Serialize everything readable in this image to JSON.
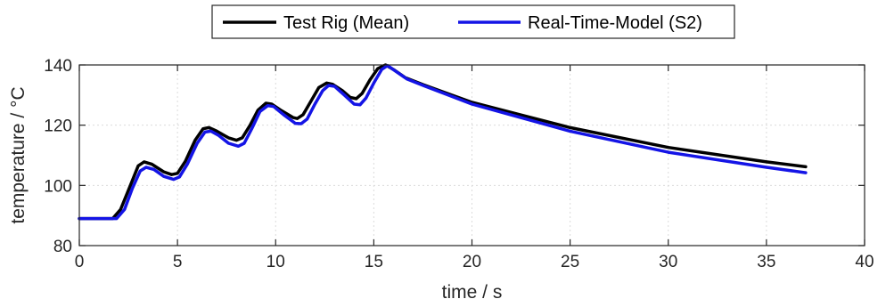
{
  "chart_data": {
    "type": "line",
    "title": "",
    "xlabel": "time / s",
    "ylabel": "temperature / °C",
    "xlim": [
      0,
      40
    ],
    "ylim": [
      80,
      140
    ],
    "xticks": [
      0,
      5,
      10,
      15,
      20,
      25,
      30,
      35,
      40
    ],
    "yticks": [
      80,
      100,
      120,
      140
    ],
    "grid": true,
    "legend_position": "top-center",
    "series": [
      {
        "name": "Test Rig (Mean)",
        "color": "#000000",
        "points": [
          [
            0,
            89
          ],
          [
            1.7,
            89
          ],
          [
            2.1,
            92
          ],
          [
            2.6,
            100
          ],
          [
            3.0,
            106.5
          ],
          [
            3.3,
            107.8
          ],
          [
            3.7,
            107.0
          ],
          [
            4.3,
            104.5
          ],
          [
            4.7,
            103.6
          ],
          [
            5.0,
            104.0
          ],
          [
            5.4,
            108
          ],
          [
            5.9,
            115
          ],
          [
            6.3,
            118.8
          ],
          [
            6.6,
            119.2
          ],
          [
            7.0,
            118.0
          ],
          [
            7.6,
            115.8
          ],
          [
            8.0,
            115.0
          ],
          [
            8.3,
            115.8
          ],
          [
            8.7,
            120
          ],
          [
            9.1,
            125
          ],
          [
            9.5,
            127.3
          ],
          [
            9.8,
            127.0
          ],
          [
            10.3,
            124.8
          ],
          [
            10.9,
            122.5
          ],
          [
            11.1,
            122.2
          ],
          [
            11.4,
            123.5
          ],
          [
            11.8,
            128
          ],
          [
            12.2,
            132.5
          ],
          [
            12.6,
            134.0
          ],
          [
            12.9,
            133.6
          ],
          [
            13.4,
            131.5
          ],
          [
            13.8,
            129.2
          ],
          [
            14.1,
            128.8
          ],
          [
            14.4,
            130.5
          ],
          [
            14.8,
            135
          ],
          [
            15.2,
            138.8
          ],
          [
            15.6,
            140.0
          ],
          [
            16.0,
            138.5
          ],
          [
            16.6,
            135.8
          ],
          [
            17.5,
            133.5
          ],
          [
            20,
            127.6
          ],
          [
            25,
            119.2
          ],
          [
            30,
            112.6
          ],
          [
            35,
            107.8
          ],
          [
            37,
            106.2
          ]
        ]
      },
      {
        "name": "Real-Time-Model (S2)",
        "color": "#1414e6",
        "points": [
          [
            0,
            89
          ],
          [
            1.9,
            89
          ],
          [
            2.3,
            92
          ],
          [
            2.7,
            99
          ],
          [
            3.1,
            104.8
          ],
          [
            3.4,
            106.0
          ],
          [
            3.8,
            105.3
          ],
          [
            4.3,
            103.0
          ],
          [
            4.8,
            102.0
          ],
          [
            5.1,
            102.8
          ],
          [
            5.5,
            107
          ],
          [
            6.0,
            114
          ],
          [
            6.4,
            117.7
          ],
          [
            6.7,
            118.0
          ],
          [
            7.1,
            116.6
          ],
          [
            7.6,
            114.0
          ],
          [
            8.1,
            113.0
          ],
          [
            8.4,
            114.0
          ],
          [
            8.8,
            119
          ],
          [
            9.2,
            124.5
          ],
          [
            9.6,
            126.5
          ],
          [
            9.9,
            126.2
          ],
          [
            10.4,
            123.5
          ],
          [
            11.0,
            120.6
          ],
          [
            11.3,
            120.5
          ],
          [
            11.6,
            122.0
          ],
          [
            12.0,
            127
          ],
          [
            12.4,
            131.5
          ],
          [
            12.7,
            133.2
          ],
          [
            13.0,
            132.9
          ],
          [
            13.5,
            130.0
          ],
          [
            14.0,
            127.0
          ],
          [
            14.3,
            126.8
          ],
          [
            14.6,
            129.0
          ],
          [
            15.0,
            134
          ],
          [
            15.4,
            138.5
          ],
          [
            15.7,
            139.8
          ],
          [
            16.1,
            138.0
          ],
          [
            16.7,
            135.3
          ],
          [
            17.6,
            133.0
          ],
          [
            20,
            127.0
          ],
          [
            25,
            118.0
          ],
          [
            30,
            111.0
          ],
          [
            35,
            106.0
          ],
          [
            37,
            104.2
          ]
        ]
      }
    ]
  }
}
